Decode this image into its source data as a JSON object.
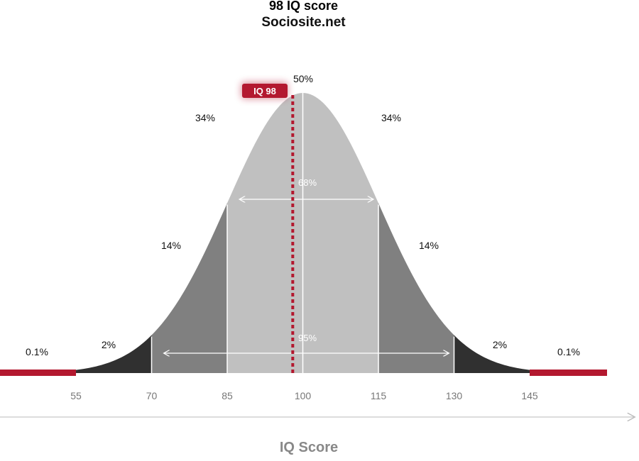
{
  "title": "98 IQ score",
  "subtitle": "Sociosite.net",
  "colors": {
    "accent": "#b3182f",
    "band_inner": "#c0c0c0",
    "band_mid": "#808080",
    "band_outer": "#303030",
    "tail": "#b3182f",
    "axis": "#c8c8c8",
    "tick_text": "#777777",
    "xlabel": "#888888"
  },
  "chart_data": {
    "type": "area",
    "title": "98 IQ score",
    "subtitle": "Sociosite.net",
    "xlabel": "IQ Score",
    "distribution": {
      "mean": 100,
      "sd": 15
    },
    "xlim": [
      40,
      160
    ],
    "x_ticks": [
      55,
      70,
      85,
      100,
      115,
      130,
      145
    ],
    "highlight": {
      "value": 98,
      "label": "IQ 98"
    },
    "bands": [
      {
        "from": 40,
        "to": 55,
        "label": "0.1%",
        "tier": "tail"
      },
      {
        "from": 55,
        "to": 70,
        "label": "2%",
        "tier": "outer"
      },
      {
        "from": 70,
        "to": 85,
        "label": "14%",
        "tier": "mid"
      },
      {
        "from": 85,
        "to": 100,
        "label": "34%",
        "tier": "inner"
      },
      {
        "from": 100,
        "to": 115,
        "label": "34%",
        "tier": "inner"
      },
      {
        "from": 115,
        "to": 130,
        "label": "14%",
        "tier": "mid"
      },
      {
        "from": 130,
        "to": 145,
        "label": "2%",
        "tier": "outer"
      },
      {
        "from": 145,
        "to": 160,
        "label": "0.1%",
        "tier": "tail"
      }
    ],
    "peak_label": "50%",
    "ranges": [
      {
        "from": 85,
        "to": 115,
        "label": "68%"
      },
      {
        "from": 70,
        "to": 130,
        "label": "95%"
      }
    ]
  }
}
